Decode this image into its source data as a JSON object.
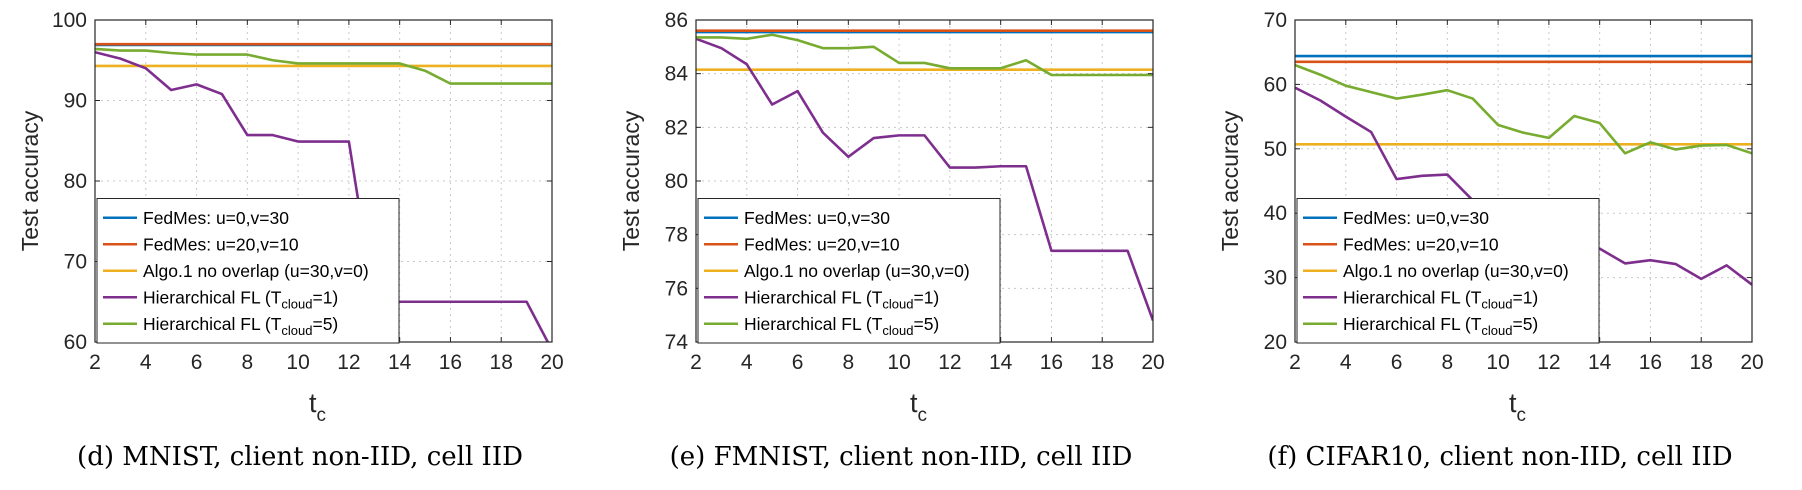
{
  "chart_data": [
    {
      "type": "line",
      "caption": "(d) MNIST, client non-IID, cell IID",
      "xlabel": "t",
      "xlabel_sub": "c",
      "ylabel": "Test accuracy",
      "xlim": [
        2,
        20
      ],
      "ylim": [
        60,
        100
      ],
      "xticks": [
        2,
        4,
        6,
        8,
        10,
        12,
        14,
        16,
        18,
        20
      ],
      "yticks": [
        60,
        70,
        80,
        90,
        100
      ],
      "grid": true,
      "legend_position": "bottom-left",
      "series": [
        {
          "name": "FedMes: u=0,v=30",
          "color": "#0072BD",
          "x": [
            2,
            20
          ],
          "y": [
            96.9,
            96.9
          ]
        },
        {
          "name": "FedMes: u=20,v=10",
          "color": "#D95319",
          "x": [
            2,
            20
          ],
          "y": [
            97.0,
            97.0
          ]
        },
        {
          "name": "Algo.1 no overlap (u=30,v=0)",
          "color": "#EDB120",
          "x": [
            2,
            20
          ],
          "y": [
            94.3,
            94.3
          ]
        },
        {
          "name": "Hierarchical FL (T",
          "name_sub": "cloud",
          "name_tail": "=1)",
          "color": "#7E2F8E",
          "x": [
            2,
            3,
            4,
            5,
            6,
            7,
            8,
            9,
            10,
            11,
            12,
            13,
            14,
            15,
            16,
            17,
            18,
            19,
            20
          ],
          "y": [
            96.0,
            95.2,
            94.0,
            91.3,
            92.0,
            90.8,
            85.7,
            85.7,
            84.9,
            84.9,
            84.9,
            65.0,
            65.0,
            65.0,
            65.0,
            65.0,
            65.0,
            65.0,
            59.0
          ]
        },
        {
          "name": "Hierarchical FL (T",
          "name_sub": "cloud",
          "name_tail": "=5)",
          "color": "#77AC30",
          "x": [
            2,
            3,
            4,
            5,
            6,
            7,
            8,
            9,
            10,
            11,
            12,
            13,
            14,
            15,
            16,
            17,
            18,
            19,
            20
          ],
          "y": [
            96.4,
            96.2,
            96.2,
            95.9,
            95.7,
            95.7,
            95.7,
            95.0,
            94.6,
            94.6,
            94.6,
            94.6,
            94.6,
            93.7,
            92.1,
            92.1,
            92.1,
            92.1,
            92.1
          ]
        }
      ]
    },
    {
      "type": "line",
      "caption": "(e) FMNIST, client non-IID, cell IID",
      "xlabel": "t",
      "xlabel_sub": "c",
      "ylabel": "Test accuracy",
      "xlim": [
        2,
        20
      ],
      "ylim": [
        74,
        86
      ],
      "xticks": [
        2,
        4,
        6,
        8,
        10,
        12,
        14,
        16,
        18,
        20
      ],
      "yticks": [
        74,
        76,
        78,
        80,
        82,
        84,
        86
      ],
      "grid": true,
      "legend_position": "bottom-left",
      "series": [
        {
          "name": "FedMes: u=0,v=30",
          "color": "#0072BD",
          "x": [
            2,
            20
          ],
          "y": [
            85.55,
            85.55
          ]
        },
        {
          "name": "FedMes: u=20,v=10",
          "color": "#D95319",
          "x": [
            2,
            20
          ],
          "y": [
            85.6,
            85.6
          ]
        },
        {
          "name": "Algo.1 no overlap (u=30,v=0)",
          "color": "#EDB120",
          "x": [
            2,
            20
          ],
          "y": [
            84.15,
            84.15
          ]
        },
        {
          "name": "Hierarchical FL (T",
          "name_sub": "cloud",
          "name_tail": "=1)",
          "color": "#7E2F8E",
          "x": [
            2,
            3,
            4,
            5,
            6,
            7,
            8,
            9,
            10,
            11,
            12,
            13,
            14,
            15,
            16,
            17,
            18,
            19,
            20
          ],
          "y": [
            85.3,
            84.95,
            84.35,
            82.85,
            83.35,
            81.8,
            80.9,
            81.6,
            81.7,
            81.7,
            80.5,
            80.5,
            80.55,
            80.55,
            77.4,
            77.4,
            77.4,
            77.4,
            74.8
          ]
        },
        {
          "name": "Hierarchical FL (T",
          "name_sub": "cloud",
          "name_tail": "=5)",
          "color": "#77AC30",
          "x": [
            2,
            3,
            4,
            5,
            6,
            7,
            8,
            9,
            10,
            11,
            12,
            13,
            14,
            15,
            16,
            17,
            18,
            19,
            20
          ],
          "y": [
            85.35,
            85.35,
            85.3,
            85.45,
            85.25,
            84.95,
            84.95,
            85.0,
            84.4,
            84.4,
            84.2,
            84.2,
            84.2,
            84.5,
            83.95,
            83.95,
            83.95,
            83.95,
            83.95
          ]
        }
      ]
    },
    {
      "type": "line",
      "caption": "(f) CIFAR10, client non-IID, cell IID",
      "xlabel": "t",
      "xlabel_sub": "c",
      "ylabel": "Test accuracy",
      "xlim": [
        2,
        20
      ],
      "ylim": [
        20,
        70
      ],
      "xticks": [
        2,
        4,
        6,
        8,
        10,
        12,
        14,
        16,
        18,
        20
      ],
      "yticks": [
        20,
        30,
        40,
        50,
        60,
        70
      ],
      "grid": true,
      "legend_position": "bottom-left",
      "series": [
        {
          "name": "FedMes: u=0,v=30",
          "color": "#0072BD",
          "x": [
            2,
            20
          ],
          "y": [
            64.4,
            64.4
          ]
        },
        {
          "name": "FedMes: u=20,v=10",
          "color": "#D95319",
          "x": [
            2,
            20
          ],
          "y": [
            63.5,
            63.5
          ]
        },
        {
          "name": "Algo.1 no overlap (u=30,v=0)",
          "color": "#EDB120",
          "x": [
            2,
            20
          ],
          "y": [
            50.7,
            50.7
          ]
        },
        {
          "name": "Hierarchical FL (T",
          "name_sub": "cloud",
          "name_tail": "=1)",
          "color": "#7E2F8E",
          "x": [
            2,
            3,
            4,
            5,
            6,
            7,
            8,
            9,
            10,
            11,
            12,
            13,
            14,
            15,
            16,
            17,
            18,
            19,
            20
          ],
          "y": [
            59.5,
            57.5,
            55.0,
            52.6,
            45.3,
            45.8,
            46.0,
            42.0,
            38.5,
            37.0,
            36.0,
            35.0,
            34.5,
            32.2,
            32.7,
            32.1,
            29.8,
            31.9,
            28.9
          ]
        },
        {
          "name": "Hierarchical FL (T",
          "name_sub": "cloud",
          "name_tail": "=5)",
          "color": "#77AC30",
          "x": [
            2,
            3,
            4,
            5,
            6,
            7,
            8,
            9,
            10,
            11,
            12,
            13,
            14,
            15,
            16,
            17,
            18,
            19,
            20
          ],
          "y": [
            63.0,
            61.5,
            59.8,
            58.8,
            57.8,
            58.4,
            59.1,
            57.8,
            53.7,
            52.5,
            51.7,
            55.1,
            54.0,
            49.3,
            51.0,
            49.9,
            50.5,
            50.6,
            49.3
          ]
        }
      ]
    }
  ]
}
